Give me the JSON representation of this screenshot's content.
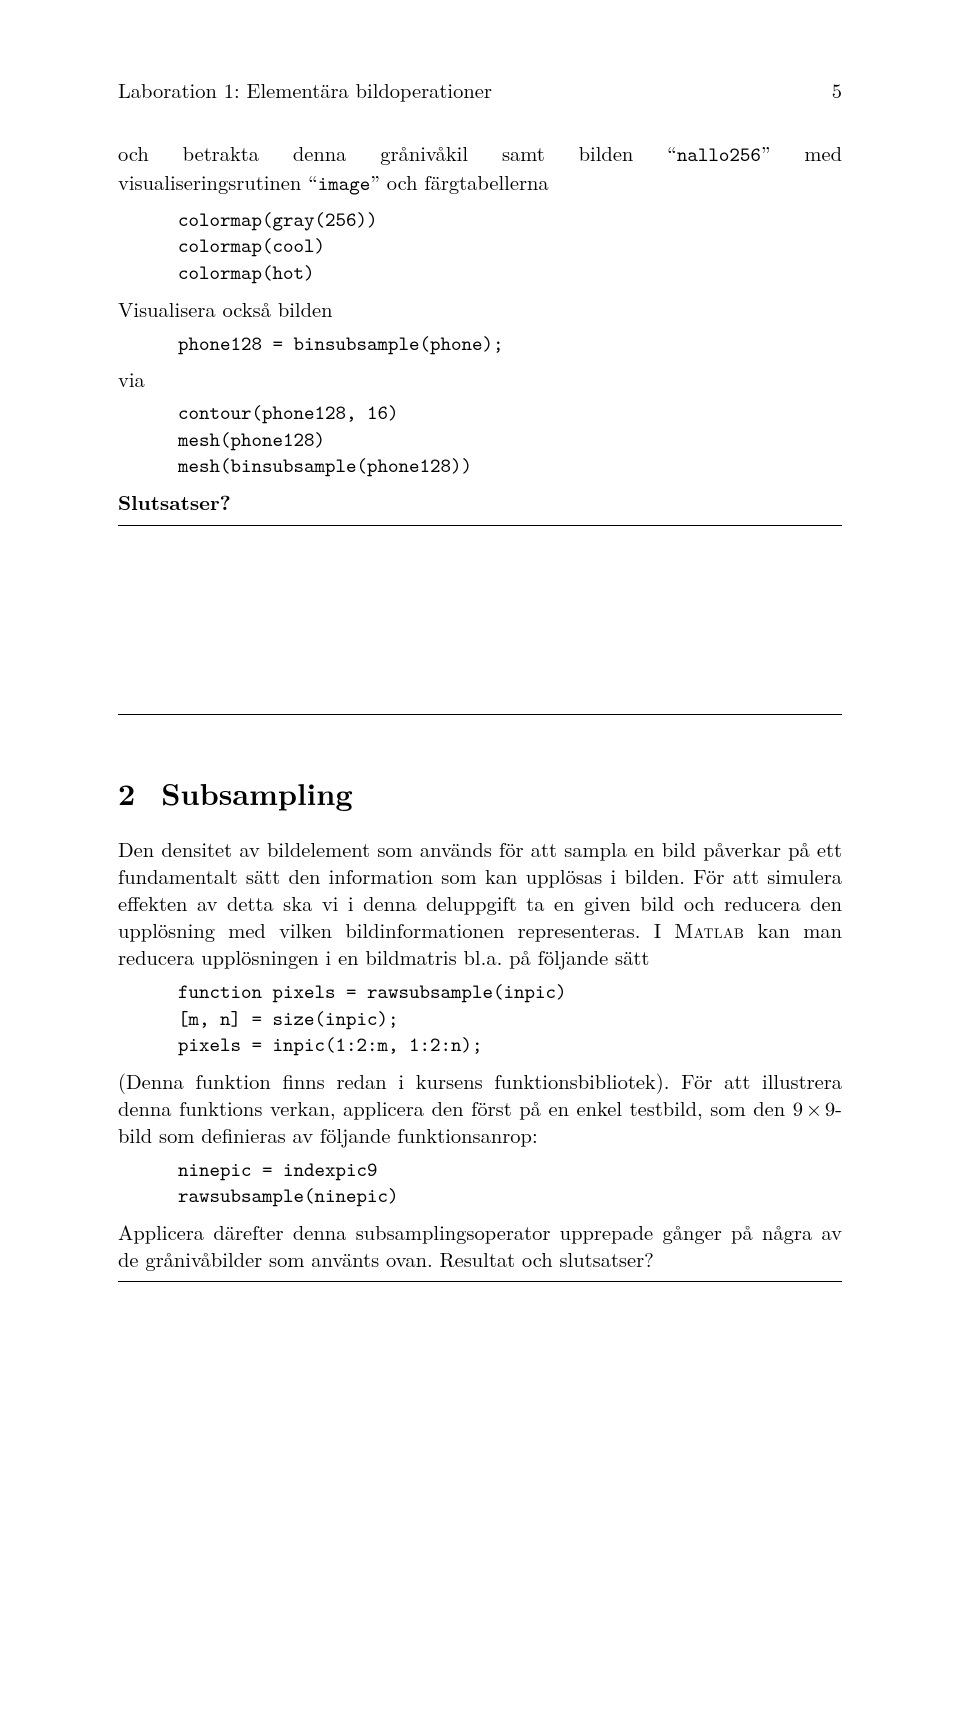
{
  "header": {
    "title": "Laboration 1: Elementära bildoperationer",
    "page_number": "5"
  },
  "top": {
    "para1_a": "och betrakta denna grånivåkil samt bilden “",
    "para1_b": "nallo256",
    "para1_c": "” med visualiseringsrutinen “",
    "para1_d": "image",
    "para1_e": "” och färgtabellerna",
    "code1": "colormap(gray(256))\ncolormap(cool)\ncolormap(hot)",
    "para2": "Visualisera också bilden",
    "code2": "phone128 = binsubsample(phone);",
    "via": "via",
    "code3": "contour(phone128, 16)\nmesh(phone128)\nmesh(binsubsample(phone128))",
    "slutsatser": "Slutsatser?"
  },
  "section": {
    "number": "2",
    "title": "Subsampling",
    "p1_a": "Den densitet av bildelement som används för att sampla en bild påverkar på ett fundamentalt sätt den information som kan upplösas i bilden. För att simulera effekten av detta ska vi i denna deluppgift ta en given bild och reducera den upplösning med vilken bildinformationen representeras. I ",
    "p1_matlab": "Matlab",
    "p1_b": " kan man reducera upplösningen i en bildmatris bl.a. på följande sätt",
    "code1": "function pixels = rawsubsample(inpic)\n[m, n] = size(inpic);\npixels = inpic(1:2:m, 1:2:n);",
    "p2_a": "(Denna funktion finns redan i kursens funktionsbibliotek). För att illustrera denna funktions verkan, applicera den först på en enkel testbild, som den ",
    "p2_dim1": "9",
    "p2_times": "×",
    "p2_dim2": "9",
    "p2_b": "-bild som definieras av följande funktionsanrop:",
    "code2": "ninepic = indexpic9\nrawsubsample(ninepic)",
    "p3": "Applicera därefter denna subsamplingsoperator upprepade gånger på några av de grånivåbilder som använts ovan. Resultat och slutsatser?"
  },
  "style": {
    "font_body_pt": 20.5,
    "font_code_pt": 20,
    "font_heading_pt": 30,
    "text_color": "#000000",
    "background_color": "#ffffff",
    "rule_color": "#000000"
  }
}
